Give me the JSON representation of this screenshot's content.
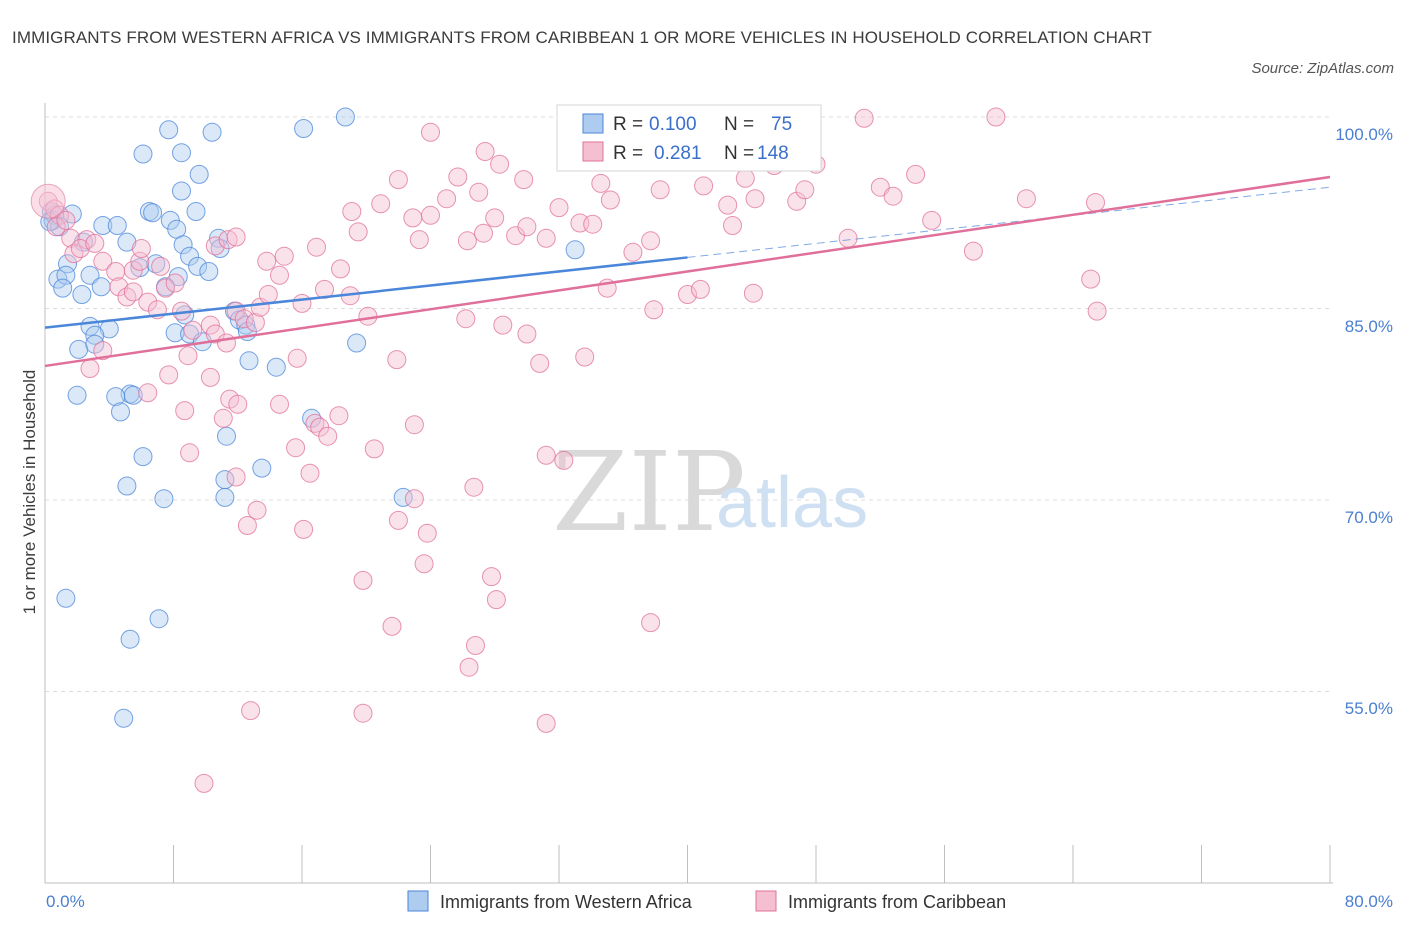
{
  "header": {
    "title": "IMMIGRANTS FROM WESTERN AFRICA VS IMMIGRANTS FROM CARIBBEAN 1 OR MORE VEHICLES IN HOUSEHOLD CORRELATION CHART",
    "source": "Source: ZipAtlas.com"
  },
  "watermark": {
    "zip": "ZIP",
    "atlas": "atlas"
  },
  "stats": {
    "r_label": "R =",
    "n_label": "N =",
    "blue_r": "0.100",
    "blue_n": "75",
    "pink_r": "0.281",
    "pink_n": "148"
  },
  "colors": {
    "blue": "#4a86d9",
    "blue_fill": "#aecbf0",
    "pink": "#e0709a",
    "pink_fill": "#f5bfd2",
    "axis_text": "#4a7fd0",
    "grid": "#dddddd"
  },
  "chart_data": {
    "type": "scatter",
    "xlabel": "",
    "ylabel": "1 or more Vehicles in Household",
    "xlim": [
      0,
      80
    ],
    "ylim": [
      40,
      100
    ],
    "x_tick_labels": [
      "0.0%",
      "80.0%"
    ],
    "y_ticks": [
      55,
      70,
      85,
      100
    ],
    "y_tick_labels": [
      "55.0%",
      "70.0%",
      "85.0%",
      "100.0%"
    ],
    "grid": true,
    "legend_position": "bottom",
    "series": [
      {
        "name": "Immigrants from Western Africa",
        "color": "#4a86d9",
        "r": 0.1,
        "n": 75,
        "trend": {
          "x": [
            0,
            40
          ],
          "y": [
            83.5,
            89.0
          ]
        },
        "points": [
          [
            0.4,
            92.6
          ],
          [
            0.6,
            92.3
          ],
          [
            0.5,
            91.9
          ],
          [
            0.9,
            91.4
          ],
          [
            0.3,
            91.8
          ],
          [
            1.7,
            92.4
          ],
          [
            2.4,
            90.2
          ],
          [
            1.4,
            88.5
          ],
          [
            0.8,
            87.3
          ],
          [
            1.3,
            87.6
          ],
          [
            1.1,
            86.6
          ],
          [
            2.8,
            87.6
          ],
          [
            3.5,
            86.7
          ],
          [
            2.3,
            86.1
          ],
          [
            3.6,
            91.5
          ],
          [
            4.5,
            91.5
          ],
          [
            5.1,
            90.2
          ],
          [
            6.5,
            92.6
          ],
          [
            6.7,
            92.5
          ],
          [
            7.8,
            91.9
          ],
          [
            8.2,
            91.2
          ],
          [
            9.4,
            92.6
          ],
          [
            10.8,
            90.5
          ],
          [
            8.6,
            90.0
          ],
          [
            10.9,
            89.7
          ],
          [
            5.9,
            88.2
          ],
          [
            6.9,
            88.5
          ],
          [
            9.0,
            89.1
          ],
          [
            9.5,
            88.3
          ],
          [
            10.2,
            87.9
          ],
          [
            8.3,
            87.5
          ],
          [
            7.5,
            86.7
          ],
          [
            2.8,
            83.6
          ],
          [
            4.0,
            83.4
          ],
          [
            3.1,
            82.9
          ],
          [
            2.1,
            81.8
          ],
          [
            3.1,
            82.2
          ],
          [
            8.7,
            84.5
          ],
          [
            8.1,
            83.1
          ],
          [
            9.0,
            83.0
          ],
          [
            9.8,
            82.4
          ],
          [
            11.8,
            84.8
          ],
          [
            12.1,
            84.1
          ],
          [
            12.5,
            83.7
          ],
          [
            12.6,
            83.2
          ],
          [
            12.7,
            80.9
          ],
          [
            14.4,
            80.4
          ],
          [
            6.1,
            97.1
          ],
          [
            7.7,
            99.0
          ],
          [
            8.5,
            97.2
          ],
          [
            9.6,
            95.5
          ],
          [
            10.4,
            98.8
          ],
          [
            16.1,
            99.1
          ],
          [
            18.7,
            100.0
          ],
          [
            8.5,
            94.2
          ],
          [
            2.0,
            78.2
          ],
          [
            5.3,
            78.3
          ],
          [
            5.5,
            78.2
          ],
          [
            4.4,
            78.1
          ],
          [
            4.7,
            76.9
          ],
          [
            11.3,
            75.0
          ],
          [
            16.6,
            76.4
          ],
          [
            6.1,
            73.4
          ],
          [
            13.5,
            72.5
          ],
          [
            11.2,
            71.6
          ],
          [
            5.1,
            71.1
          ],
          [
            7.4,
            70.1
          ],
          [
            11.2,
            70.2
          ],
          [
            22.3,
            70.2
          ],
          [
            19.4,
            82.3
          ],
          [
            33.0,
            89.6
          ],
          [
            1.3,
            62.3
          ],
          [
            5.3,
            59.1
          ],
          [
            7.1,
            60.7
          ],
          [
            4.9,
            52.9
          ]
        ]
      },
      {
        "name": "Immigrants from Caribbean",
        "color": "#e0709a",
        "r": 0.281,
        "n": 148,
        "trend": {
          "x": [
            0,
            80
          ],
          "y": [
            80.5,
            95.3
          ]
        },
        "points": [
          [
            0.2,
            93.4
          ],
          [
            0.6,
            92.8
          ],
          [
            0.9,
            92.3
          ],
          [
            0.7,
            91.4
          ],
          [
            1.3,
            91.9
          ],
          [
            1.6,
            90.5
          ],
          [
            2.6,
            90.4
          ],
          [
            1.8,
            89.3
          ],
          [
            2.2,
            89.7
          ],
          [
            3.1,
            90.1
          ],
          [
            3.6,
            88.7
          ],
          [
            4.4,
            87.9
          ],
          [
            5.5,
            88.0
          ],
          [
            5.9,
            88.7
          ],
          [
            6.0,
            89.7
          ],
          [
            7.2,
            88.3
          ],
          [
            4.6,
            86.7
          ],
          [
            5.1,
            85.9
          ],
          [
            5.5,
            86.3
          ],
          [
            6.4,
            85.5
          ],
          [
            7.0,
            84.9
          ],
          [
            7.5,
            86.6
          ],
          [
            8.1,
            87.0
          ],
          [
            8.5,
            84.8
          ],
          [
            9.2,
            83.3
          ],
          [
            10.3,
            83.7
          ],
          [
            10.6,
            83.0
          ],
          [
            11.3,
            82.3
          ],
          [
            11.9,
            84.8
          ],
          [
            12.4,
            84.2
          ],
          [
            13.1,
            83.9
          ],
          [
            13.4,
            85.1
          ],
          [
            13.9,
            86.1
          ],
          [
            14.6,
            87.6
          ],
          [
            16.0,
            85.4
          ],
          [
            17.4,
            86.5
          ],
          [
            19.0,
            86.0
          ],
          [
            20.1,
            84.4
          ],
          [
            10.6,
            89.9
          ],
          [
            11.4,
            90.4
          ],
          [
            11.9,
            90.6
          ],
          [
            13.8,
            88.7
          ],
          [
            14.9,
            89.1
          ],
          [
            16.9,
            89.8
          ],
          [
            18.4,
            88.1
          ],
          [
            19.1,
            92.6
          ],
          [
            19.5,
            91.0
          ],
          [
            20.9,
            93.2
          ],
          [
            22.0,
            95.1
          ],
          [
            22.9,
            92.1
          ],
          [
            23.3,
            90.4
          ],
          [
            24.0,
            92.3
          ],
          [
            25.0,
            93.6
          ],
          [
            25.7,
            95.3
          ],
          [
            26.3,
            90.3
          ],
          [
            27.0,
            94.1
          ],
          [
            27.3,
            90.9
          ],
          [
            28.0,
            92.1
          ],
          [
            28.3,
            96.3
          ],
          [
            29.3,
            90.7
          ],
          [
            29.8,
            95.1
          ],
          [
            30.0,
            91.4
          ],
          [
            31.2,
            90.5
          ],
          [
            32.0,
            92.9
          ],
          [
            33.3,
            91.7
          ],
          [
            34.1,
            91.6
          ],
          [
            34.6,
            94.8
          ],
          [
            35.2,
            93.5
          ],
          [
            36.6,
            89.4
          ],
          [
            37.7,
            90.3
          ],
          [
            38.3,
            94.3
          ],
          [
            38.9,
            96.6
          ],
          [
            39.4,
            97.4
          ],
          [
            41.0,
            94.6
          ],
          [
            42.5,
            93.1
          ],
          [
            42.8,
            91.5
          ],
          [
            43.6,
            95.2
          ],
          [
            44.2,
            93.6
          ],
          [
            45.4,
            96.2
          ],
          [
            46.1,
            96.7
          ],
          [
            46.8,
            93.4
          ],
          [
            47.3,
            94.3
          ],
          [
            48.0,
            96.3
          ],
          [
            50.0,
            90.5
          ],
          [
            52.0,
            94.5
          ],
          [
            52.8,
            93.8
          ],
          [
            54.2,
            95.5
          ],
          [
            55.2,
            91.9
          ],
          [
            57.8,
            89.5
          ],
          [
            59.2,
            100.0
          ],
          [
            61.1,
            93.6
          ],
          [
            65.1,
            87.3
          ],
          [
            65.4,
            93.3
          ],
          [
            65.5,
            84.8
          ],
          [
            2.8,
            80.3
          ],
          [
            3.6,
            81.7
          ],
          [
            6.4,
            78.4
          ],
          [
            7.7,
            79.8
          ],
          [
            8.7,
            77.0
          ],
          [
            8.9,
            81.3
          ],
          [
            10.3,
            79.6
          ],
          [
            11.5,
            77.9
          ],
          [
            11.1,
            76.4
          ],
          [
            12.0,
            77.5
          ],
          [
            14.6,
            77.5
          ],
          [
            15.7,
            81.1
          ],
          [
            18.3,
            76.6
          ],
          [
            20.5,
            74.0
          ],
          [
            21.9,
            81.0
          ],
          [
            23.0,
            75.9
          ],
          [
            16.8,
            76.0
          ],
          [
            17.1,
            75.7
          ],
          [
            17.6,
            75.0
          ],
          [
            15.6,
            74.1
          ],
          [
            16.5,
            72.1
          ],
          [
            9.0,
            73.7
          ],
          [
            11.9,
            71.8
          ],
          [
            13.2,
            69.2
          ],
          [
            16.1,
            67.7
          ],
          [
            12.6,
            68.0
          ],
          [
            22.0,
            68.4
          ],
          [
            23.0,
            70.1
          ],
          [
            23.8,
            67.4
          ],
          [
            23.6,
            65.0
          ],
          [
            26.7,
            71.0
          ],
          [
            27.8,
            64.0
          ],
          [
            28.1,
            62.2
          ],
          [
            19.8,
            63.7
          ],
          [
            21.6,
            60.1
          ],
          [
            26.8,
            58.6
          ],
          [
            26.4,
            56.9
          ],
          [
            31.2,
            73.5
          ],
          [
            32.3,
            73.1
          ],
          [
            37.7,
            60.4
          ],
          [
            26.2,
            84.2
          ],
          [
            28.5,
            83.7
          ],
          [
            30.0,
            83.0
          ],
          [
            30.8,
            80.7
          ],
          [
            33.6,
            81.2
          ],
          [
            37.9,
            84.9
          ],
          [
            40.0,
            86.1
          ],
          [
            40.8,
            86.5
          ],
          [
            44.1,
            86.2
          ],
          [
            12.8,
            53.5
          ],
          [
            19.8,
            53.3
          ],
          [
            31.2,
            52.5
          ],
          [
            9.9,
            47.8
          ],
          [
            35.0,
            86.6
          ],
          [
            24.0,
            98.8
          ],
          [
            27.4,
            97.3
          ],
          [
            51.0,
            99.9
          ]
        ]
      }
    ]
  },
  "legend": {
    "items": [
      "Immigrants from Western Africa",
      "Immigrants from Caribbean"
    ]
  }
}
